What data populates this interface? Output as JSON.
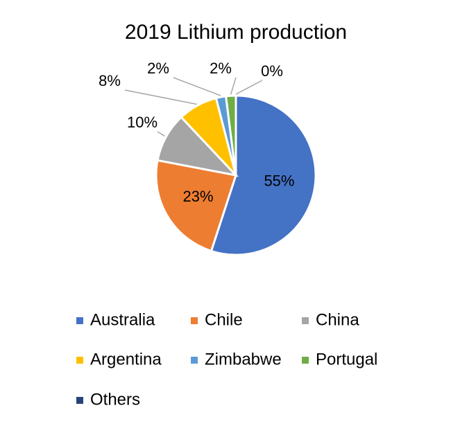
{
  "chart_data": {
    "type": "pie",
    "title": "2019 Lithium production",
    "categories": [
      "Australia",
      "Chile",
      "China",
      "Argentina",
      "Zimbabwe",
      "Portugal",
      "Others"
    ],
    "values": [
      55,
      23,
      10,
      8,
      2,
      2,
      0
    ],
    "value_labels": [
      "55%",
      "23%",
      "10%",
      "8%",
      "2%",
      "2%",
      "0%"
    ],
    "colors": [
      "#4472c4",
      "#ed7d31",
      "#a5a5a5",
      "#ffc000",
      "#5b9bd5",
      "#70ad47",
      "#264478"
    ],
    "legend": "bottom"
  }
}
